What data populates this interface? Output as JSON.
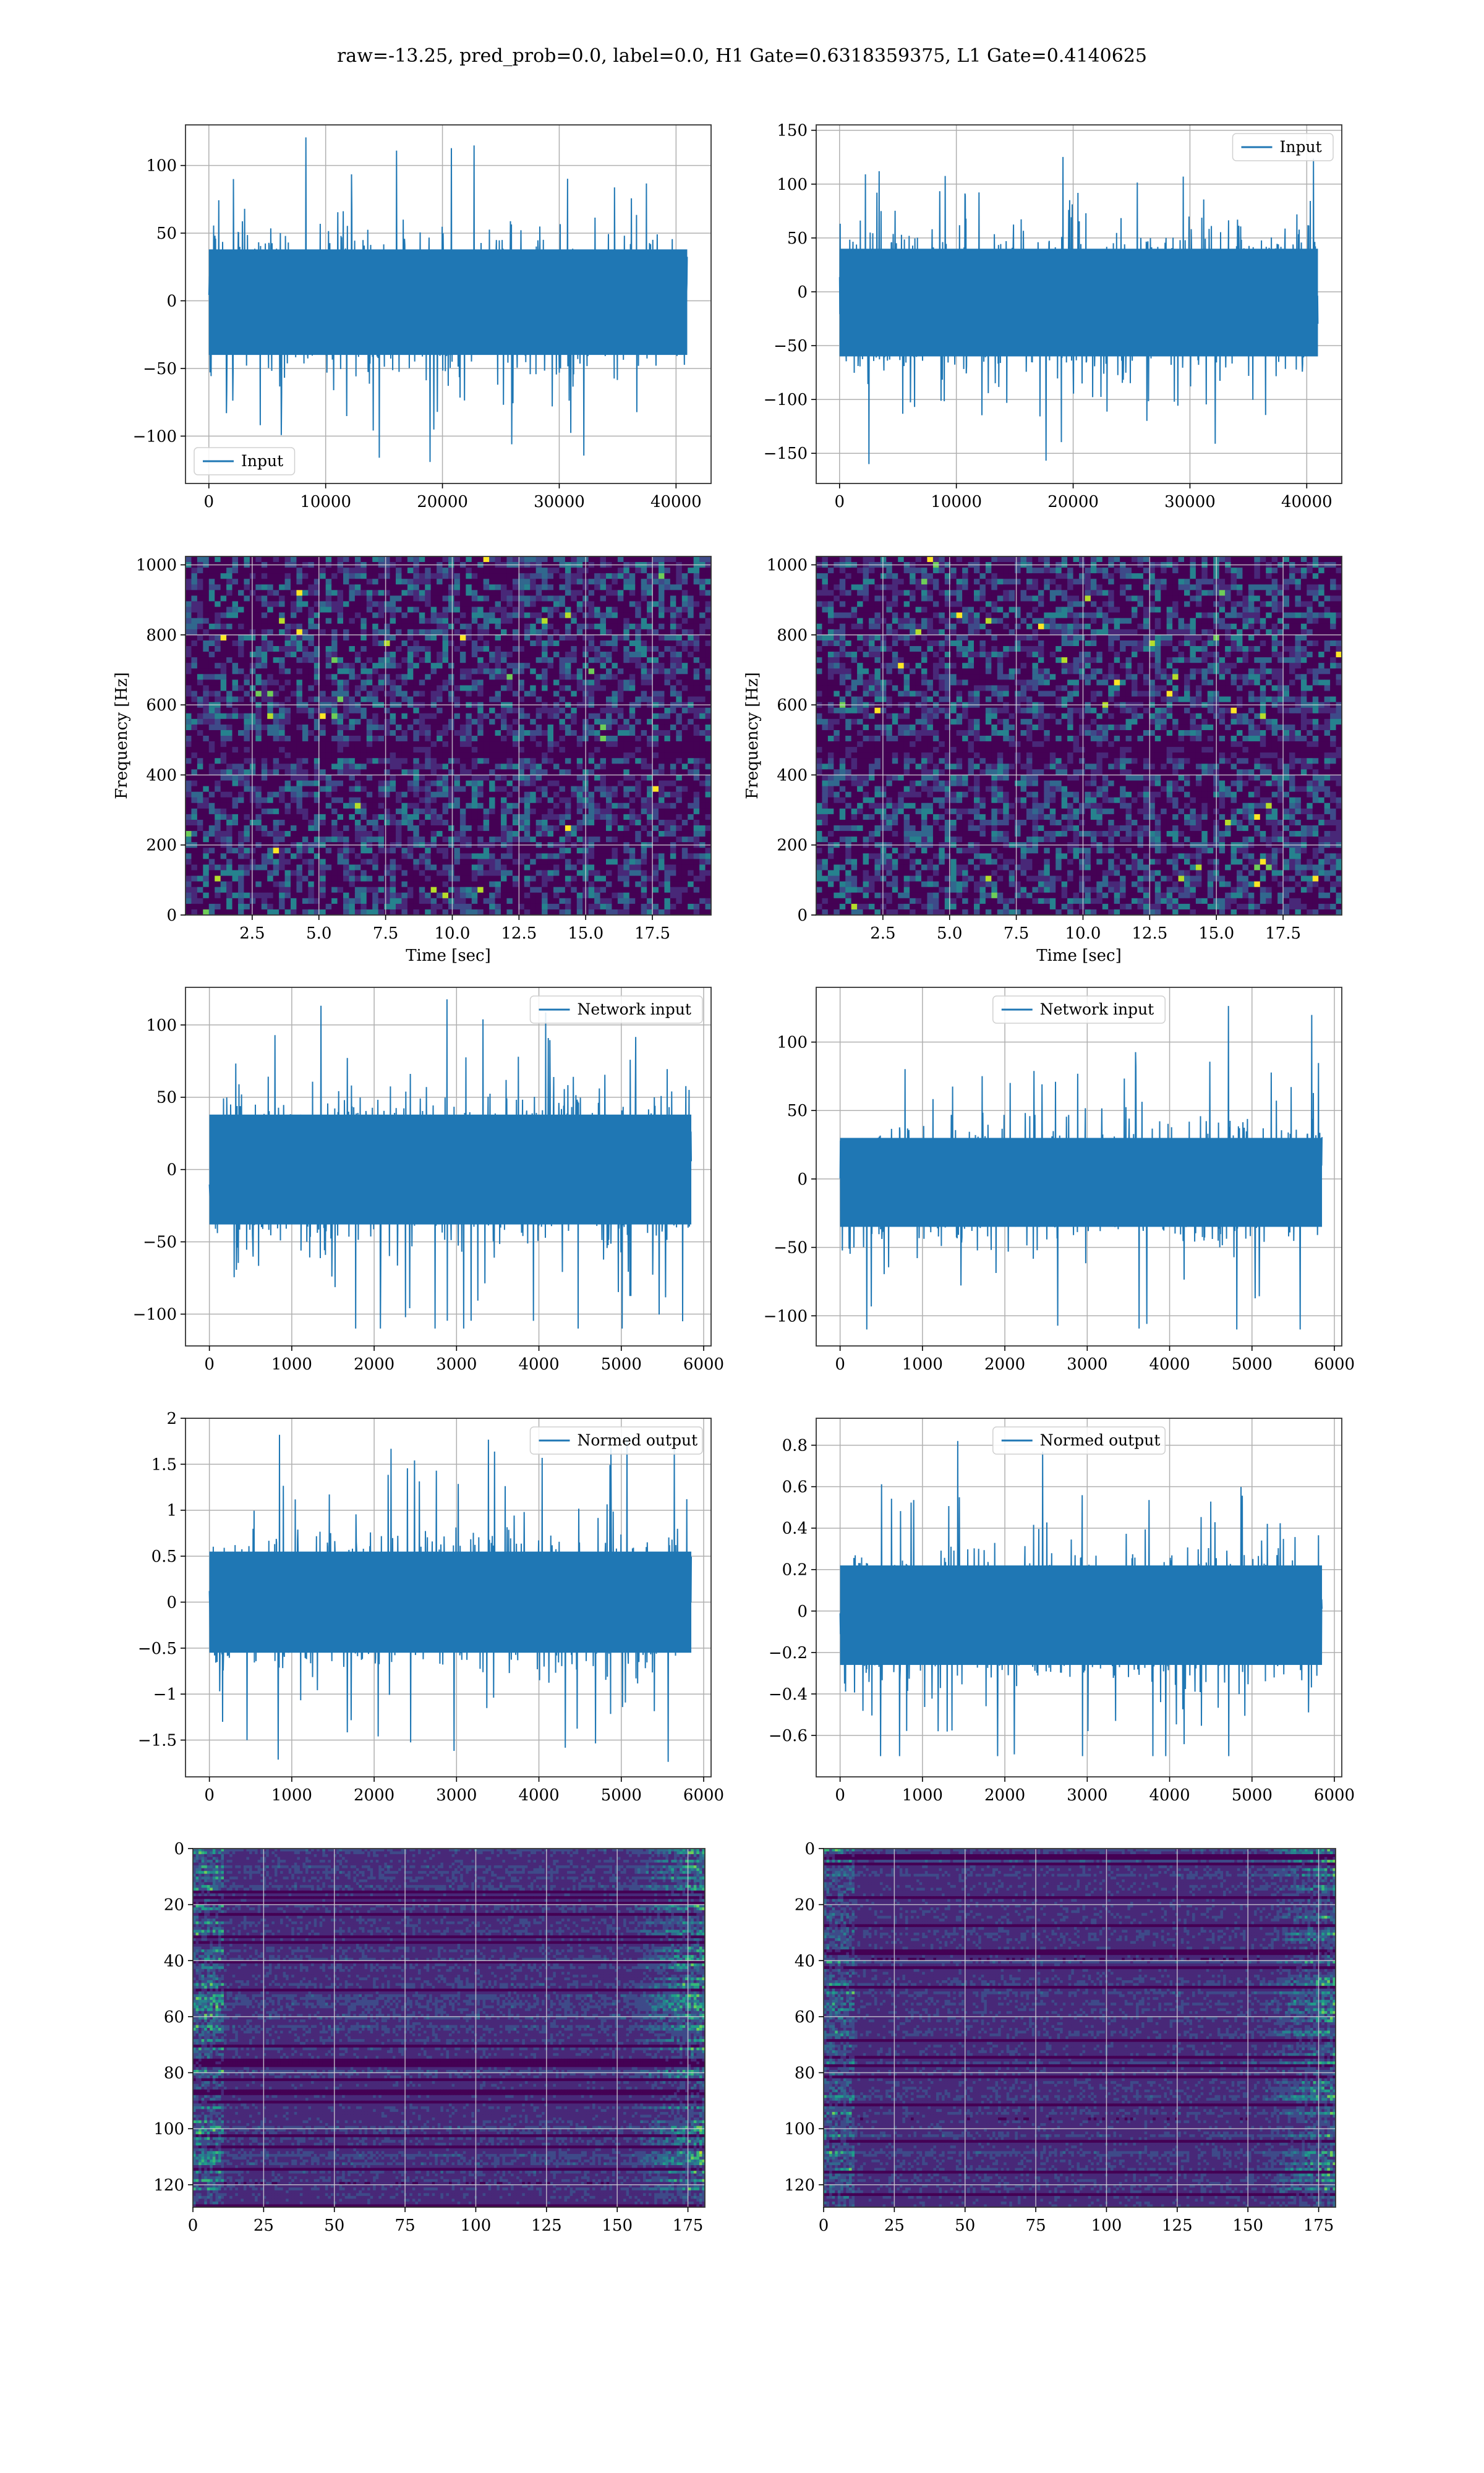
{
  "figure": {
    "suptitle": "raw=-13.25, pred_prob=0.0, label=0.0, H1 Gate=0.6318359375, L1 Gate=0.4140625"
  },
  "colors": {
    "line": "#1f77b4",
    "grid": "#b0b0b0",
    "viridis": [
      "#440154",
      "#482878",
      "#3e4a89",
      "#31688e",
      "#26828e",
      "#1f9e89",
      "#35b779",
      "#6ece58",
      "#b5de2b",
      "#fde725"
    ]
  },
  "chart_data": [
    {
      "type": "line",
      "id": "input-h1",
      "legend": {
        "label": "Input",
        "loc": "lower-left"
      },
      "xlim": [
        -2000,
        43000
      ],
      "ylim": [
        -135,
        130
      ],
      "xticks": [
        0,
        10000,
        20000,
        30000,
        40000
      ],
      "yticks": [
        -100,
        -50,
        0,
        50,
        100
      ],
      "grid": true,
      "signal": {
        "x_start": 0,
        "x_end": 40959,
        "band_low": -40,
        "band_high": 38,
        "min": -125,
        "max": 122
      }
    },
    {
      "type": "line",
      "id": "input-l1",
      "legend": {
        "label": "Input",
        "loc": "upper-right"
      },
      "xlim": [
        -2000,
        43000
      ],
      "ylim": [
        -178,
        155
      ],
      "xticks": [
        0,
        10000,
        20000,
        30000,
        40000
      ],
      "yticks": [
        -150,
        -100,
        -50,
        0,
        50,
        100,
        150
      ],
      "grid": true,
      "signal": {
        "x_start": 0,
        "x_end": 40959,
        "band_low": -60,
        "band_high": 40,
        "min": -162,
        "max": 138
      }
    },
    {
      "type": "heatmap",
      "id": "spectrogram-h1",
      "xlabel": "Time [sec]",
      "ylabel": "Frequency [Hz]",
      "xlim": [
        0,
        19.7
      ],
      "ylim": [
        0,
        1024
      ],
      "xticks": [
        2.5,
        5.0,
        7.5,
        10.0,
        12.5,
        15.0,
        17.5
      ],
      "yticks": [
        0,
        200,
        400,
        600,
        800,
        1000
      ],
      "grid": true
    },
    {
      "type": "heatmap",
      "id": "spectrogram-l1",
      "xlabel": "Time [sec]",
      "ylabel": "Frequency [Hz]",
      "xlim": [
        0,
        19.7
      ],
      "ylim": [
        0,
        1024
      ],
      "xticks": [
        2.5,
        5.0,
        7.5,
        10.0,
        12.5,
        15.0,
        17.5
      ],
      "yticks": [
        0,
        200,
        400,
        600,
        800,
        1000
      ],
      "grid": true
    },
    {
      "type": "line",
      "id": "network-input-h1",
      "legend": {
        "label": "Network input",
        "loc": "upper-right"
      },
      "xlim": [
        -290,
        6090
      ],
      "ylim": [
        -122,
        126
      ],
      "xticks": [
        0,
        1000,
        2000,
        3000,
        4000,
        5000,
        6000
      ],
      "yticks": [
        -100,
        -50,
        0,
        50,
        100
      ],
      "grid": true,
      "signal": {
        "x_start": 0,
        "x_end": 5850,
        "band_low": -38,
        "band_high": 38,
        "min": -110,
        "max": 120
      }
    },
    {
      "type": "line",
      "id": "network-input-l1",
      "legend": {
        "label": "Network input",
        "loc": "upper-center"
      },
      "xlim": [
        -290,
        6090
      ],
      "ylim": [
        -122,
        140
      ],
      "xticks": [
        0,
        1000,
        2000,
        3000,
        4000,
        5000,
        6000
      ],
      "yticks": [
        -100,
        -50,
        0,
        50,
        100
      ],
      "grid": true,
      "signal": {
        "x_start": 0,
        "x_end": 5850,
        "band_low": -35,
        "band_high": 30,
        "min": -110,
        "max": 130
      }
    },
    {
      "type": "line",
      "id": "normed-output-h1",
      "legend": {
        "label": "Normed output",
        "loc": "upper-right"
      },
      "xlim": [
        -290,
        6090
      ],
      "ylim": [
        -1.9,
        2.0
      ],
      "xticks": [
        0,
        1000,
        2000,
        3000,
        4000,
        5000,
        6000
      ],
      "yticks": [
        -1.5,
        -1.0,
        -0.5,
        0.0,
        0.5,
        1.0,
        1.5,
        2.0
      ],
      "grid": true,
      "signal": {
        "x_start": 0,
        "x_end": 5850,
        "band_low": -0.55,
        "band_high": 0.55,
        "min": -1.75,
        "max": 1.85
      }
    },
    {
      "type": "line",
      "id": "normed-output-l1",
      "legend": {
        "label": "Normed output",
        "loc": "upper-center"
      },
      "xlim": [
        -290,
        6090
      ],
      "ylim": [
        -0.8,
        0.93
      ],
      "xticks": [
        0,
        1000,
        2000,
        3000,
        4000,
        5000,
        6000
      ],
      "yticks": [
        -0.6,
        -0.4,
        -0.2,
        0.0,
        0.2,
        0.4,
        0.6,
        0.8
      ],
      "grid": true,
      "signal": {
        "x_start": 0,
        "x_end": 5850,
        "band_low": -0.26,
        "band_high": 0.22,
        "min": -0.7,
        "max": 0.85
      }
    },
    {
      "type": "heatmap",
      "id": "feature-map-h1",
      "xlim": [
        0,
        181
      ],
      "ylim": [
        128,
        0
      ],
      "xticks": [
        0,
        25,
        50,
        75,
        100,
        125,
        150,
        175
      ],
      "yticks": [
        0,
        20,
        40,
        60,
        80,
        100,
        120
      ],
      "grid": true
    },
    {
      "type": "heatmap",
      "id": "feature-map-l1",
      "xlim": [
        0,
        181
      ],
      "ylim": [
        128,
        0
      ],
      "xticks": [
        0,
        25,
        50,
        75,
        100,
        125,
        150,
        175
      ],
      "yticks": [
        0,
        20,
        40,
        60,
        80,
        100,
        120
      ],
      "grid": true
    }
  ]
}
